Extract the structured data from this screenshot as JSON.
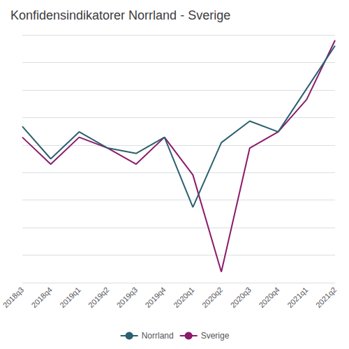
{
  "chart_data": {
    "type": "line",
    "title": "Konfidensindikatorer Norrland - Sverige",
    "categories": [
      "2018q3",
      "2018q4",
      "2019q1",
      "2019q2",
      "2019q3",
      "2019q4",
      "2020q1",
      "2020q2",
      "2020q3",
      "2020q4",
      "2021q1",
      "2021q2"
    ],
    "series": [
      {
        "name": "Norrland",
        "color": "#2B6070",
        "values": [
          17,
          11,
          16,
          13,
          12,
          15,
          2,
          14,
          18,
          16,
          24,
          32
        ]
      },
      {
        "name": "Sverige",
        "color": "#8B1A6B",
        "values": [
          15,
          10,
          15,
          13,
          10,
          15,
          8,
          -10,
          13,
          16,
          22,
          33
        ]
      }
    ],
    "ylim": [
      -12,
      34
    ],
    "yticks": [
      -12,
      -6.888888888888889,
      -1.7777777777777786,
      3.333333333333332,
      8.444444444444443,
      13.555555555555555,
      18.666666666666664,
      23.77777777777778,
      28.888888888888886,
      34
    ],
    "grid": true,
    "tick_labels": "x",
    "legend": "bottom"
  }
}
